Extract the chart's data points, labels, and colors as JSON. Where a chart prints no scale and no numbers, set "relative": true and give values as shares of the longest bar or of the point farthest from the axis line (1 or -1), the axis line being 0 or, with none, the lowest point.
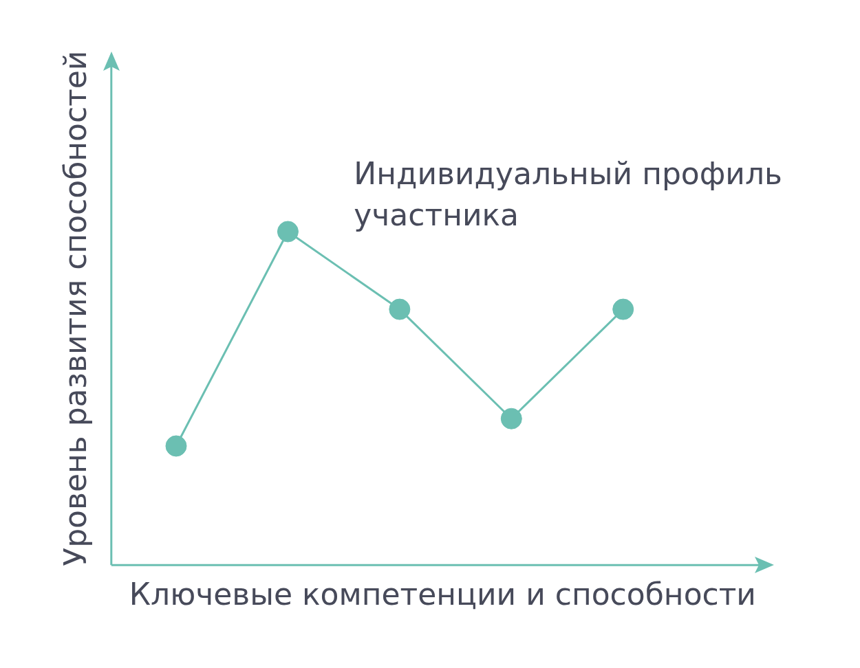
{
  "chart_data": {
    "type": "line",
    "relative": true,
    "xlabel": "Ключевые компетенции и способности",
    "ylabel": "Уровень развития способностей",
    "categories": [
      null,
      null,
      null,
      null,
      null
    ],
    "series": [
      {
        "name": "Индивидуальный профиль участника",
        "color": "#6bbfb2",
        "values": [
          0.357,
          1,
          0.767,
          0.439,
          0.767
        ]
      }
    ],
    "marker": "circle",
    "line_style": "solid",
    "grid": false,
    "legend": false,
    "tick_labels": false
  }
}
